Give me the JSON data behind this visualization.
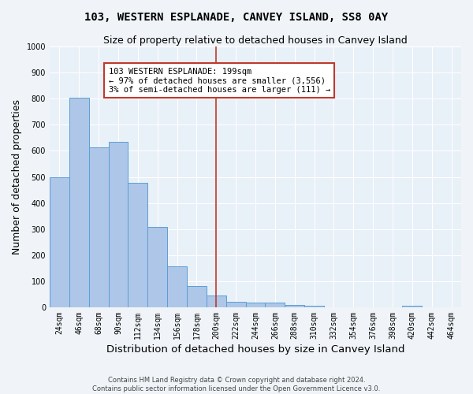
{
  "title": "103, WESTERN ESPLANADE, CANVEY ISLAND, SS8 0AY",
  "subtitle": "Size of property relative to detached houses in Canvey Island",
  "xlabel": "Distribution of detached houses by size in Canvey Island",
  "ylabel": "Number of detached properties",
  "footer_line1": "Contains HM Land Registry data © Crown copyright and database right 2024.",
  "footer_line2": "Contains public sector information licensed under the Open Government Licence v3.0.",
  "categories": [
    "24sqm",
    "46sqm",
    "68sqm",
    "90sqm",
    "112sqm",
    "134sqm",
    "156sqm",
    "178sqm",
    "200sqm",
    "222sqm",
    "244sqm",
    "266sqm",
    "288sqm",
    "310sqm",
    "332sqm",
    "354sqm",
    "376sqm",
    "398sqm",
    "420sqm",
    "442sqm",
    "464sqm"
  ],
  "values": [
    500,
    803,
    615,
    635,
    478,
    308,
    158,
    80,
    45,
    22,
    18,
    18,
    10,
    5,
    0,
    0,
    0,
    0,
    5,
    0,
    0
  ],
  "bar_color": "#aec6e8",
  "bar_edge_color": "#5a9fd4",
  "vline_color": "#c0392b",
  "vline_x": 8,
  "annotation_text": "103 WESTERN ESPLANADE: 199sqm\n← 97% of detached houses are smaller (3,556)\n3% of semi-detached houses are larger (111) →",
  "annotation_box_color": "#ffffff",
  "annotation_box_edge": "#c0392b",
  "ylim": [
    0,
    1000
  ],
  "yticks": [
    0,
    100,
    200,
    300,
    400,
    500,
    600,
    700,
    800,
    900,
    1000
  ],
  "background_color": "#e8f0f8",
  "grid_color": "#ffffff",
  "title_fontsize": 10,
  "subtitle_fontsize": 9,
  "axis_label_fontsize": 9,
  "tick_fontsize": 7,
  "annotation_fontsize": 7.5,
  "fig_bg_color": "#f0f4f8"
}
